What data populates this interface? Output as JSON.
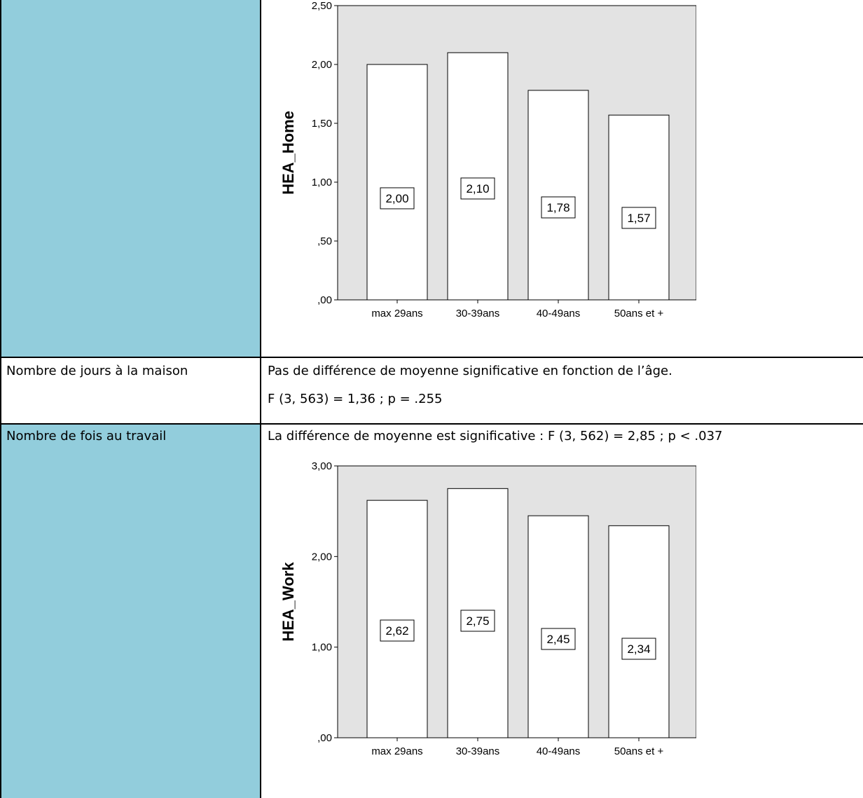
{
  "table": {
    "row2": {
      "label": "Nombre de jours à la maison",
      "line1": "Pas de différence de moyenne significative en fonction de l’âge.",
      "line2": "F (3, 563) = 1,36 ; p = .255"
    },
    "row3": {
      "label": "Nombre de fois au travail",
      "line1": "La différence de moyenne est significative : F (3, 562) = 2,85 ; p < .037"
    },
    "colors": {
      "label_cell_bg": "#92cddc",
      "plot_bg": "#e3e3e3",
      "bar_fill": "#ffffff"
    }
  },
  "chart_data": [
    {
      "type": "bar",
      "categories": [
        "max 29ans",
        "30-39ans",
        "40-49ans",
        "50ans et +"
      ],
      "values": [
        2.0,
        2.1,
        1.78,
        1.57
      ],
      "data_labels": [
        "2,00",
        "2,10",
        "1,78",
        "1,57"
      ],
      "ylabel": "HEA_Home",
      "ylim": [
        0,
        2.5
      ],
      "yticks": [
        0,
        0.5,
        1.0,
        1.5,
        2.0,
        2.5
      ],
      "ytick_labels": [
        ",00",
        ",50",
        "1,00",
        "1,50",
        "2,00",
        "2,50"
      ],
      "grid": false
    },
    {
      "type": "bar",
      "categories": [
        "max 29ans",
        "30-39ans",
        "40-49ans",
        "50ans et +"
      ],
      "values": [
        2.62,
        2.75,
        2.45,
        2.34
      ],
      "data_labels": [
        "2,62",
        "2,75",
        "2,45",
        "2,34"
      ],
      "ylabel": "HEA_Work",
      "ylim": [
        0,
        3.0
      ],
      "yticks": [
        0,
        1.0,
        2.0,
        3.0
      ],
      "ytick_labels": [
        ",00",
        "1,00",
        "2,00",
        "3,00"
      ],
      "grid": false
    }
  ]
}
